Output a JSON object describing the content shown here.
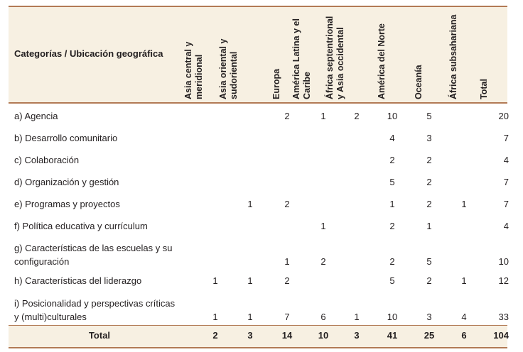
{
  "table": {
    "category_header": "Categorías / Ubicación geográfica",
    "region_headers": [
      [
        "Asia central y",
        "meridional"
      ],
      [
        "Asia oriental y",
        "sudoriental"
      ],
      [
        "Europa"
      ],
      [
        "América Latina y el",
        "Caribe"
      ],
      [
        "África septentrional",
        "y Asia occidental"
      ],
      [
        "América del Norte"
      ],
      [
        "Oceanía"
      ],
      [
        "África subsahariana"
      ],
      [
        "Total"
      ]
    ],
    "rows": [
      {
        "lines": [
          "a)  Agencia"
        ],
        "values": [
          "",
          "",
          "2",
          "1",
          "2",
          "10",
          "5",
          "",
          "20"
        ]
      },
      {
        "lines": [
          "b)  Desarrollo comunitario"
        ],
        "values": [
          "",
          "",
          "",
          "",
          "",
          "4",
          "3",
          "",
          "7"
        ]
      },
      {
        "lines": [
          "c)  Colaboración"
        ],
        "values": [
          "",
          "",
          "",
          "",
          "",
          "2",
          "2",
          "",
          "4"
        ]
      },
      {
        "lines": [
          "d)  Organización y gestión"
        ],
        "values": [
          "",
          "",
          "",
          "",
          "",
          "5",
          "2",
          "",
          "7"
        ]
      },
      {
        "lines": [
          "e)  Programas y proyectos"
        ],
        "values": [
          "",
          "1",
          "2",
          "",
          "",
          "1",
          "2",
          "1",
          "7"
        ]
      },
      {
        "lines": [
          "f)   Política educativa y currículum"
        ],
        "values": [
          "",
          "",
          "",
          "1",
          "",
          "2",
          "1",
          "",
          "4"
        ]
      },
      {
        "lines": [
          "g)  Características de las escuelas y su",
          "configuración"
        ],
        "values": [
          "",
          "",
          "1",
          "2",
          "",
          "2",
          "5",
          "",
          "10"
        ]
      },
      {
        "lines": [
          "h)  Características del liderazgo"
        ],
        "values": [
          "1",
          "1",
          "2",
          "",
          "",
          "5",
          "2",
          "1",
          "12"
        ]
      },
      {
        "lines": [
          "i)   Posicionalidad y perspectivas críticas",
          "y (multi)culturales"
        ],
        "values": [
          "1",
          "1",
          "7",
          "6",
          "1",
          "10",
          "3",
          "4",
          "33"
        ]
      }
    ],
    "total_label": "Total",
    "totals": [
      "2",
      "3",
      "14",
      "10",
      "3",
      "41",
      "25",
      "6",
      "104"
    ]
  }
}
